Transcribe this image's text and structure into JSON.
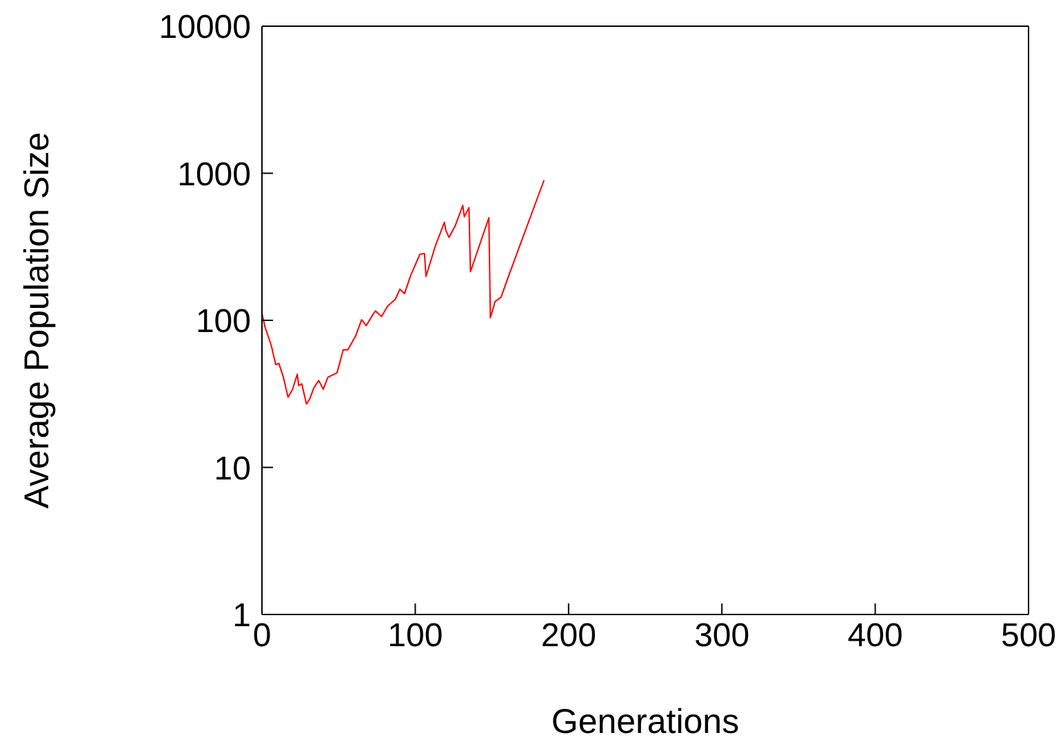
{
  "chart_data": {
    "type": "line",
    "xlabel": "Generations",
    "ylabel": "Average Population Size",
    "log": "y",
    "marker": "none",
    "line_style": "solid",
    "xlim": [
      0,
      500
    ],
    "xticks": [
      0,
      100,
      200,
      300,
      400,
      500
    ],
    "ylim": [
      1,
      10000
    ],
    "yticks": [
      1,
      10,
      100,
      1000,
      10000
    ],
    "series": [
      {
        "color": "#ff0000",
        "x": [
          0,
          2,
          6,
          9,
          11,
          14,
          17,
          20,
          23,
          24,
          26,
          29,
          31,
          34,
          37,
          40,
          43,
          49,
          53,
          56,
          61,
          65,
          68,
          72,
          74,
          78,
          82,
          87,
          90,
          93,
          97,
          103,
          106,
          107,
          113,
          119,
          120,
          122,
          126,
          131,
          132,
          135,
          136,
          148,
          149,
          152,
          156,
          161,
          184
        ],
        "values": [
          111,
          90,
          68,
          50,
          51,
          41,
          30,
          34,
          43,
          36,
          37,
          27,
          29,
          35,
          39,
          34,
          41,
          44,
          63,
          63,
          78,
          101,
          92,
          108,
          116,
          106,
          125,
          139,
          163,
          152,
          202,
          281,
          285,
          199,
          318,
          464,
          407,
          366,
          438,
          605,
          506,
          584,
          214,
          499,
          104,
          134,
          144,
          202,
          898
        ]
      }
    ]
  }
}
